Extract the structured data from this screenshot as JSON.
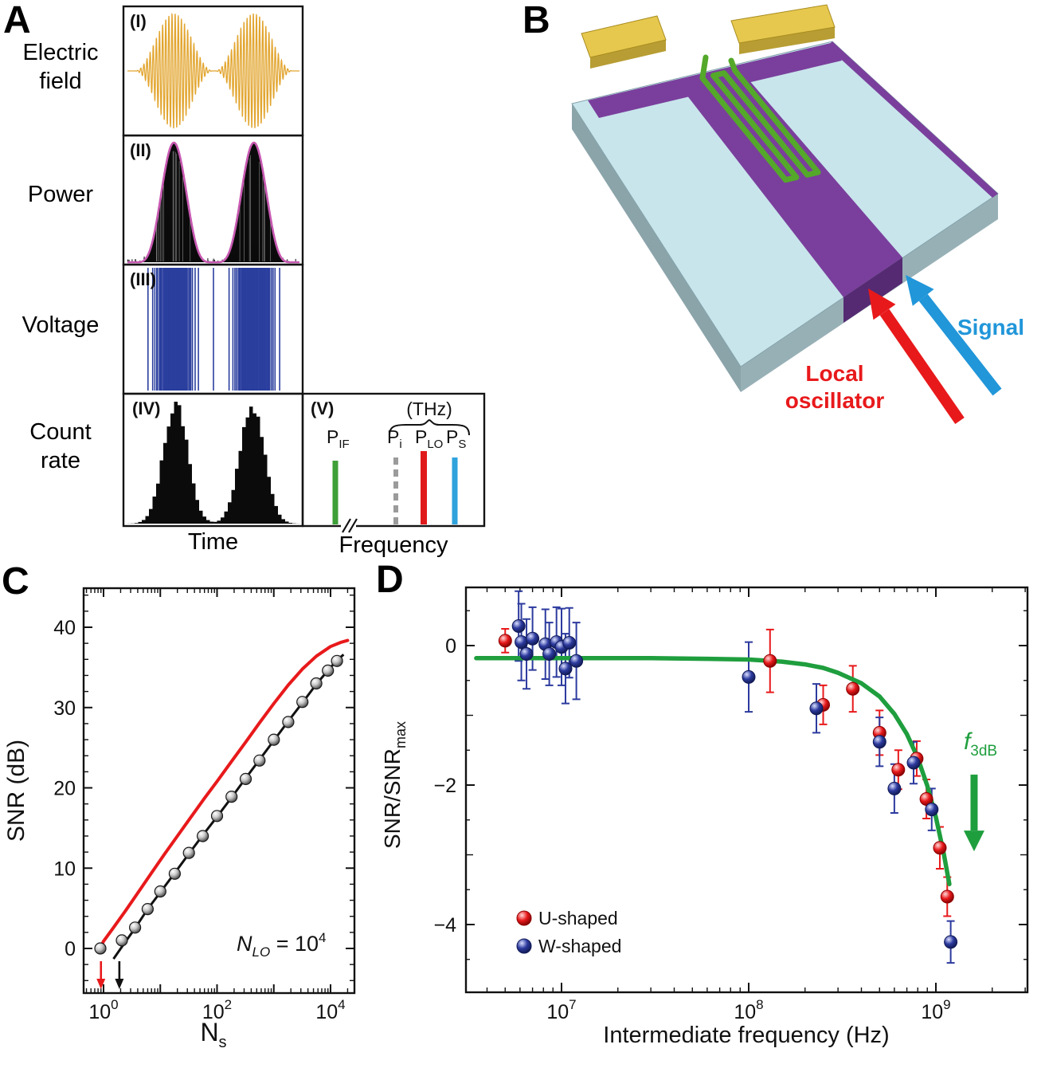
{
  "figure": {
    "panels": {
      "A": {
        "label": "A",
        "row_labels": {
          "electric": [
            "Electric",
            "field"
          ],
          "power": "Power",
          "voltage": "Voltage",
          "count": [
            "Count",
            "rate"
          ]
        },
        "sub_labels": [
          "(I)",
          "(II)",
          "(III)",
          "(IV)",
          "(V)"
        ],
        "x_labels": {
          "time": "Time",
          "frequency": "Frequency"
        },
        "thz_label": "(THz)",
        "freq_bars": [
          {
            "base": "P",
            "sub": "IF",
            "color": "#3f9f38",
            "style": "solid"
          },
          {
            "base": "P",
            "sub": "i",
            "color": "#9b9b9b",
            "style": "dashed"
          },
          {
            "base": "P",
            "sub": "LO",
            "color": "#e01a1a",
            "style": "solid"
          },
          {
            "base": "P",
            "sub": "S",
            "color": "#2fa3dc",
            "style": "solid"
          }
        ],
        "colors": {
          "field": "#e2a52f",
          "power_outline": "#c85ab2",
          "power_fill": "#0b0b0b",
          "voltage": "#2b3f9e",
          "count": "#0b0b0b"
        }
      },
      "B": {
        "label": "B",
        "annotations": [
          {
            "id": "local-oscillator",
            "lines": [
              "Local",
              "oscillator"
            ],
            "color": "#e8191b"
          },
          {
            "id": "signal",
            "lines": [
              "Signal"
            ],
            "color": "#2196d9"
          }
        ],
        "colors": {
          "substrate_top": "#c8e5ec",
          "substrate_side": "#8ba4aa",
          "substrate_front": "#97b0b6",
          "strip_top": "#7a3f9c",
          "strip_side": "#552a72",
          "pad_top": "#e6c84e",
          "pad_side": "#b79d33",
          "meander": "#54a82a"
        }
      },
      "C": {
        "label": "C"
      },
      "D": {
        "label": "D"
      }
    }
  },
  "chart_data": [
    {
      "panel": "C",
      "type": "scatter",
      "xlabel": "Ns",
      "xlabel_parts": {
        "base": "N",
        "sub": "s"
      },
      "ylabel": "SNR (dB)",
      "xscale": "log",
      "xlim": [
        0.45,
        26000
      ],
      "ylim": [
        -5.5,
        45
      ],
      "xticks": [
        1,
        100,
        10000
      ],
      "yticks": [
        0,
        10,
        20,
        30,
        40
      ],
      "grid": false,
      "annotation": {
        "base": "N",
        "sub": "LO",
        "mid": " = 10",
        "sup": "4",
        "text": "NLO = 10^4"
      },
      "series": [
        {
          "name": "heterodyne-theory",
          "type": "line",
          "color": "#e8191b",
          "points": [
            [
              0.82,
              -0.4
            ],
            [
              1,
              0.9
            ],
            [
              1.5,
              2.6
            ],
            [
              2.5,
              4.8
            ],
            [
              4,
              6.9
            ],
            [
              7,
              9.4
            ],
            [
              12,
              11.8
            ],
            [
              20,
              14.0
            ],
            [
              35,
              16.4
            ],
            [
              60,
              18.7
            ],
            [
              100,
              20.8
            ],
            [
              180,
              23.3
            ],
            [
              320,
              25.7
            ],
            [
              560,
              28.1
            ],
            [
              1000,
              30.5
            ],
            [
              1800,
              32.8
            ],
            [
              3200,
              34.8
            ],
            [
              5600,
              36.4
            ],
            [
              10000,
              37.6
            ],
            [
              15000,
              38.1
            ],
            [
              20000,
              38.35
            ]
          ]
        },
        {
          "name": "photon-counting-theory",
          "type": "line",
          "color": "#111111",
          "points": [
            [
              1.5,
              -1.3
            ],
            [
              2.2,
              0.4
            ],
            [
              3.5,
              2.4
            ],
            [
              6,
              4.9
            ],
            [
              10,
              7.0
            ],
            [
              18,
              9.4
            ],
            [
              32,
              11.8
            ],
            [
              56,
              14.1
            ],
            [
              100,
              16.4
            ],
            [
              180,
              18.8
            ],
            [
              320,
              21.2
            ],
            [
              560,
              23.5
            ],
            [
              1000,
              25.9
            ],
            [
              1800,
              28.3
            ],
            [
              3200,
              30.6
            ],
            [
              5600,
              32.9
            ],
            [
              10000,
              35.0
            ],
            [
              14000,
              36.1
            ],
            [
              17000,
              36.6
            ]
          ]
        },
        {
          "name": "measured-snr",
          "type": "scatter",
          "color": "#888888",
          "points": [
            [
              0.88,
              0.0
            ],
            [
              2.1,
              1.0
            ],
            [
              3.6,
              2.6
            ],
            [
              6,
              4.9
            ],
            [
              10,
              7.1
            ],
            [
              18,
              9.3
            ],
            [
              32,
              11.9
            ],
            [
              56,
              14.0
            ],
            [
              100,
              16.5
            ],
            [
              180,
              18.9
            ],
            [
              320,
              21.1
            ],
            [
              560,
              23.4
            ],
            [
              1000,
              26.0
            ],
            [
              1800,
              28.2
            ],
            [
              3200,
              30.7
            ],
            [
              5600,
              33.0
            ],
            [
              9000,
              34.6
            ],
            [
              13000,
              35.8
            ]
          ]
        }
      ],
      "threshold_arrows": [
        {
          "x": 0.9,
          "color": "#e8191b"
        },
        {
          "x": 1.9,
          "color": "#111111"
        }
      ]
    },
    {
      "panel": "D",
      "type": "scatter",
      "xlabel": "Intermediate frequency (Hz)",
      "ylabel": "SNR/SNRmax",
      "ylabel_parts": {
        "base": "SNR/SNR",
        "sub": "max"
      },
      "xscale": "log",
      "xlim": [
        3200000.0,
        3200000000.0
      ],
      "ylim": [
        -4.97,
        0.83
      ],
      "xticks": [
        10000000.0,
        100000000.0,
        1000000000.0
      ],
      "yticks": [
        0,
        -2,
        -4
      ],
      "grid": false,
      "legend": [
        {
          "label": "U-shaped",
          "color": "#e8191b"
        },
        {
          "label": "W-shaped",
          "color": "#2c3a9e"
        }
      ],
      "legend_position": "lower-left",
      "fit": {
        "name": "bandwidth-roll-off-fit",
        "color": "#1f9e3e",
        "points": [
          [
            3500000.0,
            -0.18
          ],
          [
            10000000.0,
            -0.18
          ],
          [
            30000000.0,
            -0.18
          ],
          [
            60000000.0,
            -0.19
          ],
          [
            100000000.0,
            -0.2
          ],
          [
            150000000.0,
            -0.23
          ],
          [
            200000000.0,
            -0.27
          ],
          [
            250000000.0,
            -0.32
          ],
          [
            300000000.0,
            -0.39
          ],
          [
            400000000.0,
            -0.54
          ],
          [
            500000000.0,
            -0.73
          ],
          [
            600000000.0,
            -0.98
          ],
          [
            700000000.0,
            -1.27
          ],
          [
            800000000.0,
            -1.61
          ],
          [
            900000000.0,
            -2.01
          ],
          [
            1000000000.0,
            -2.46
          ],
          [
            1100000000.0,
            -2.97
          ],
          [
            1180000000.0,
            -3.42
          ]
        ]
      },
      "arrow": {
        "label_parts": {
          "base": "f",
          "sub": "3dB"
        },
        "x": 1600000000.0,
        "y_from": -1.85,
        "y_to": -2.95,
        "color": "#1f9e3e"
      },
      "series": [
        {
          "name": "U-shaped",
          "color": "#e8191b",
          "points": [
            [
              5000000.0,
              0.07,
              0.17
            ],
            [
              130000000.0,
              -0.22,
              0.45
            ],
            [
              250000000.0,
              -0.85,
              0.28
            ],
            [
              360000000.0,
              -0.62,
              0.33
            ],
            [
              500000000.0,
              -1.25,
              0.32
            ],
            [
              630000000.0,
              -1.78,
              0.28
            ],
            [
              790000000.0,
              -1.62,
              0.25
            ],
            [
              890000000.0,
              -2.2,
              0.28
            ],
            [
              1050000000.0,
              -2.9,
              0.3
            ],
            [
              1150000000.0,
              -3.6,
              0.28
            ]
          ]
        },
        {
          "name": "W-shaped",
          "color": "#2c3a9e",
          "points": [
            [
              5900000.0,
              0.28,
              0.5
            ],
            [
              6100000.0,
              0.05,
              0.55
            ],
            [
              6500000.0,
              -0.12,
              0.5
            ],
            [
              7000000.0,
              0.1,
              0.45
            ],
            [
              8200000.0,
              0.02,
              0.5
            ],
            [
              8600000.0,
              -0.12,
              0.45
            ],
            [
              9400000.0,
              0.05,
              0.5
            ],
            [
              10000000.0,
              -0.02,
              0.55
            ],
            [
              10500000.0,
              -0.33,
              0.5
            ],
            [
              11000000.0,
              0.04,
              0.5
            ],
            [
              12000000.0,
              -0.22,
              0.55
            ],
            [
              100000000.0,
              -0.45,
              0.5
            ],
            [
              230000000.0,
              -0.9,
              0.35
            ],
            [
              500000000.0,
              -1.38,
              0.35
            ],
            [
              600000000.0,
              -2.05,
              0.35
            ],
            [
              760000000.0,
              -1.68,
              0.3
            ],
            [
              950000000.0,
              -2.35,
              0.3
            ],
            [
              1200000000.0,
              -4.25,
              0.3
            ]
          ]
        }
      ]
    }
  ]
}
